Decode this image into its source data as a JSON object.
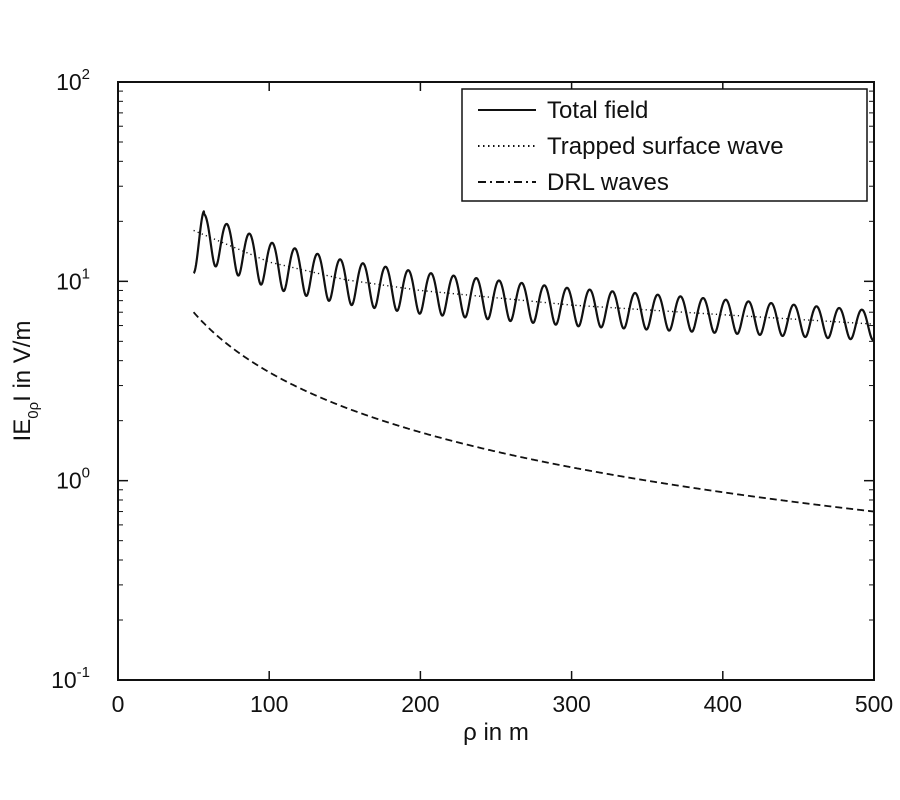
{
  "chart_data": {
    "type": "line",
    "xlabel": "ρ in m",
    "ylabel": {
      "base": "IE",
      "sub": "0ρ",
      "rest": "I in V/m"
    },
    "xlim": [
      0,
      500
    ],
    "ylim": [
      0.1,
      100
    ],
    "yscale": "log",
    "grid": false,
    "legend_position": "top-right",
    "x_ticks": [
      {
        "value": 0,
        "label": "0"
      },
      {
        "value": 100,
        "label": "100"
      },
      {
        "value": 200,
        "label": "200"
      },
      {
        "value": 300,
        "label": "300"
      },
      {
        "value": 400,
        "label": "400"
      },
      {
        "value": 500,
        "label": "500"
      }
    ],
    "y_ticks": [
      {
        "value": 100,
        "base": "10",
        "exp": "2"
      },
      {
        "value": 10,
        "base": "10",
        "exp": "1"
      },
      {
        "value": 1,
        "base": "10",
        "exp": "0"
      },
      {
        "value": 0.1,
        "base": "10",
        "exp": "-1"
      }
    ],
    "series": [
      {
        "name": "Total field",
        "style": "solid",
        "model": {
          "x_start": 50,
          "x_end": 500,
          "trend_x": [
            50,
            100,
            150,
            200,
            300,
            400,
            500
          ],
          "trend_y": [
            18.0,
            12.5,
            10.2,
            9.0,
            7.6,
            6.8,
            6.1
          ],
          "oscillation_period": 15.0,
          "relative_amplitude": [
            0.27,
            0.17
          ],
          "first_peak_x": 57,
          "first_peak_y": 22.5,
          "start_y": 11.0
        }
      },
      {
        "name": "Trapped surface wave",
        "style": "dotted",
        "model": {
          "x_start": 50,
          "x_end": 500,
          "trend_x": [
            50,
            100,
            150,
            200,
            300,
            400,
            500
          ],
          "trend_y": [
            18.0,
            12.5,
            10.2,
            9.0,
            7.6,
            6.8,
            6.1
          ]
        }
      },
      {
        "name": "DRL waves",
        "style": "dashdot",
        "model": {
          "x_start": 50,
          "x_end": 500,
          "y_at_x_start": 7.0,
          "power_exponent": -1.0
        }
      }
    ]
  }
}
